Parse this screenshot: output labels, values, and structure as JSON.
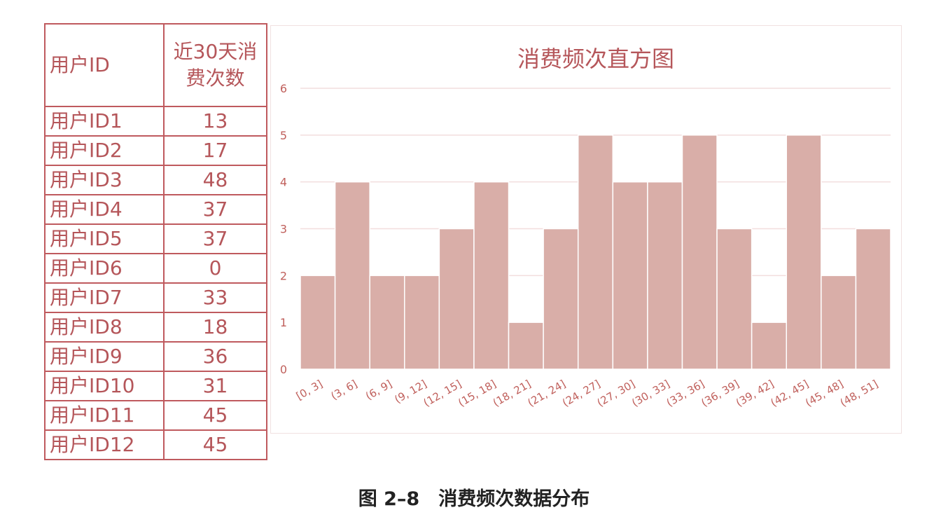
{
  "table": {
    "header": {
      "col1": "用户ID",
      "col2_line1": "近30天消",
      "col2_line2": "费次数"
    },
    "rows": [
      {
        "user": "用户ID1",
        "count": "13"
      },
      {
        "user": "用户ID2",
        "count": "17"
      },
      {
        "user": "用户ID3",
        "count": "48"
      },
      {
        "user": "用户ID4",
        "count": "37"
      },
      {
        "user": "用户ID5",
        "count": "37"
      },
      {
        "user": "用户ID6",
        "count": "0"
      },
      {
        "user": "用户ID7",
        "count": "33"
      },
      {
        "user": "用户ID8",
        "count": "18"
      },
      {
        "user": "用户ID9",
        "count": "36"
      },
      {
        "user": "用户ID10",
        "count": "31"
      },
      {
        "user": "用户ID11",
        "count": "45"
      },
      {
        "user": "用户ID12",
        "count": "45"
      }
    ]
  },
  "chart_data": {
    "type": "bar",
    "title": "消费频次直方图",
    "xlabel": "",
    "ylabel": "",
    "categories": [
      "[0, 3]",
      "(3, 6]",
      "(6, 9]",
      "(9, 12]",
      "(12, 15]",
      "(15, 18]",
      "(18, 21]",
      "(21, 24]",
      "(24, 27]",
      "(27, 30]",
      "(30, 33]",
      "(33, 36]",
      "(36, 39]",
      "(39, 42]",
      "(42, 45]",
      "(45, 48]",
      "(48, 51]"
    ],
    "values": [
      2,
      4,
      2,
      2,
      3,
      4,
      1,
      3,
      5,
      4,
      4,
      5,
      3,
      1,
      5,
      2,
      3
    ],
    "ylim": [
      0,
      6
    ],
    "yticks": [
      "0",
      "1",
      "2",
      "3",
      "4",
      "5",
      "6"
    ],
    "grid": true,
    "colors": {
      "bar": "#d9aea8",
      "bar_edge": "#ffffff",
      "text": "#c0605c",
      "grid": "#f2dede"
    }
  },
  "caption": "图 2–8　消费频次数据分布"
}
